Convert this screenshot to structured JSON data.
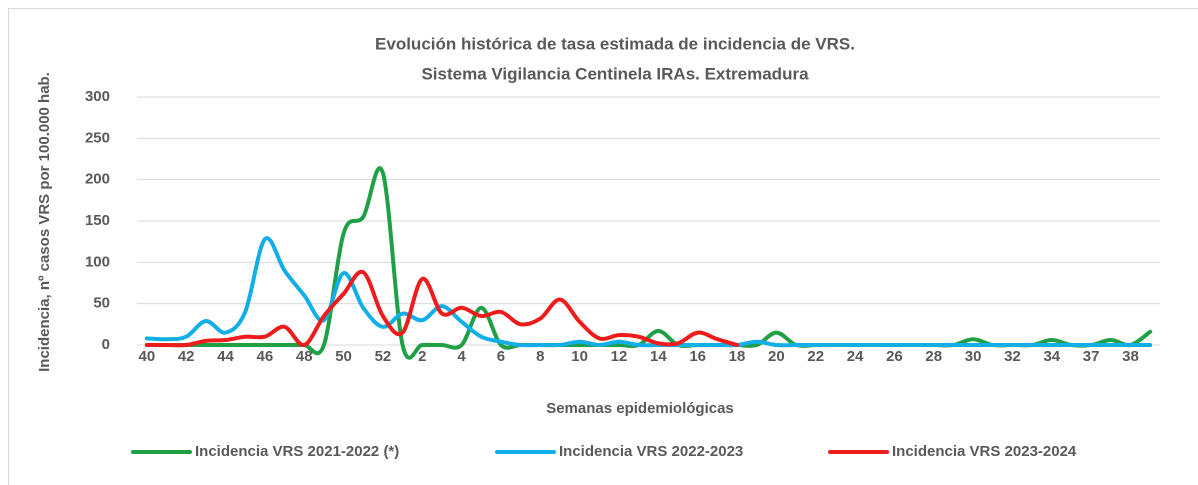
{
  "chart_data": {
    "type": "line",
    "title": "Evolución histórica de tasa estimada de  incidencia de VRS.",
    "subtitle": "Sistema Vigilancia Centinela IRAs. Extremadura",
    "x_label": "Semanas epidemiológicas",
    "y_label": "Incidencia, nº casos VRS  por 100.000 hab.",
    "categories": [
      "40",
      null,
      "42",
      null,
      "44",
      null,
      "46",
      null,
      "48",
      null,
      "50",
      null,
      "52",
      null,
      "2",
      null,
      "4",
      null,
      "6",
      null,
      "8",
      null,
      "10",
      null,
      "12",
      null,
      "14",
      null,
      "16",
      null,
      "18",
      null,
      "20",
      null,
      "22",
      null,
      "24",
      null,
      "26",
      null,
      "28",
      null,
      "30",
      null,
      "32",
      null,
      "34",
      null,
      "37",
      null,
      "38",
      null
    ],
    "series": [
      {
        "name": "Incidencia VRS 2021-2022 (*)",
        "color": "#1fa046",
        "values": [
          0,
          0,
          0,
          0,
          0,
          0,
          0,
          0,
          0,
          0,
          135,
          155,
          208,
          0,
          0,
          0,
          0,
          45,
          0,
          0,
          0,
          0,
          0,
          0,
          0,
          0,
          17,
          0,
          0,
          0,
          0,
          0,
          15,
          0,
          0,
          0,
          0,
          0,
          0,
          0,
          0,
          0,
          7,
          0,
          0,
          0,
          6,
          0,
          0,
          6,
          0,
          16
        ]
      },
      {
        "name": "Incidencia VRS 2022-2023",
        "color": "#12aee8",
        "values": [
          8,
          7,
          10,
          29,
          15,
          40,
          128,
          90,
          60,
          30,
          87,
          45,
          22,
          38,
          30,
          47,
          28,
          10,
          4,
          0,
          0,
          0,
          4,
          0,
          4,
          0,
          0,
          0,
          0,
          0,
          0,
          4,
          0,
          0,
          0,
          0,
          0,
          0,
          0,
          0,
          0,
          0,
          0,
          0,
          0,
          0,
          0,
          0,
          0,
          0,
          0,
          0
        ]
      },
      {
        "name": "Incidencia VRS 2023-2024",
        "color": "#ee1c1c",
        "values": [
          0,
          0,
          0,
          5,
          6,
          10,
          10,
          22,
          0,
          35,
          62,
          88,
          35,
          15,
          80,
          38,
          45,
          35,
          40,
          25,
          32,
          55,
          28,
          8,
          12,
          10,
          2,
          2,
          15,
          7,
          0,
          null,
          null,
          null,
          null,
          null,
          null,
          null,
          null,
          null,
          null,
          null,
          null,
          null,
          null,
          null,
          null,
          null,
          null,
          null,
          null,
          null
        ]
      }
    ],
    "ylim": [
      0,
      300
    ],
    "yticks": [
      0,
      50,
      100,
      150,
      200,
      250,
      300
    ],
    "grid": true
  }
}
